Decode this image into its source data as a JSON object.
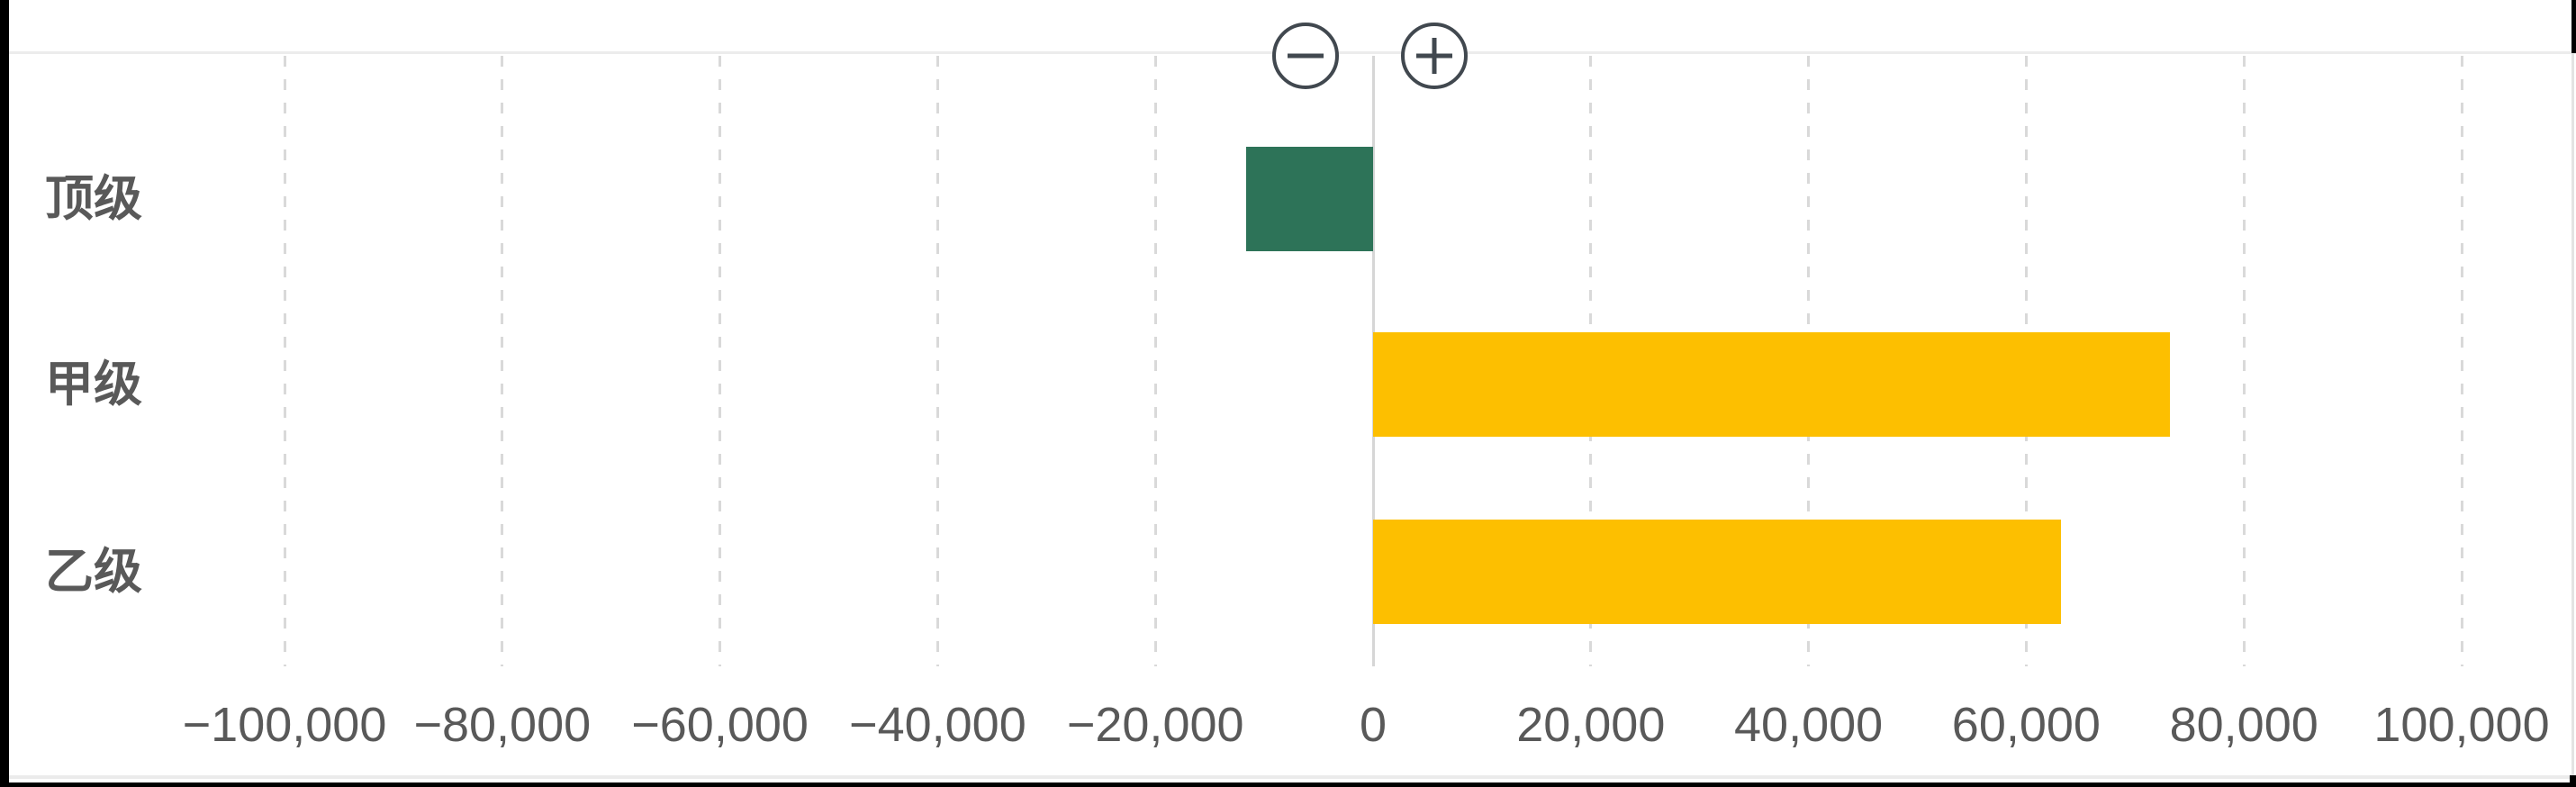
{
  "controls": {
    "zoom_out": {
      "icon": "minus-circle-icon"
    },
    "zoom_in": {
      "icon": "plus-circle-icon"
    }
  },
  "chart_data": {
    "type": "bar",
    "orientation": "horizontal",
    "title": "",
    "xlabel": "",
    "ylabel": "",
    "categories": [
      "顶级",
      "甲级",
      "乙级"
    ],
    "values": [
      -11700,
      73200,
      63200
    ],
    "bar_colors": [
      "#2d7358",
      "#fdbf00",
      "#fdbf00"
    ],
    "x_ticks": [
      {
        "value": -100000,
        "label": "−100,000"
      },
      {
        "value": -80000,
        "label": "−80,000"
      },
      {
        "value": -60000,
        "label": "−60,000"
      },
      {
        "value": -40000,
        "label": "−40,000"
      },
      {
        "value": -20000,
        "label": "−20,000"
      },
      {
        "value": 0,
        "label": "0"
      },
      {
        "value": 20000,
        "label": "20,000"
      },
      {
        "value": 40000,
        "label": "40,000"
      },
      {
        "value": 60000,
        "label": "60,000"
      },
      {
        "value": 80000,
        "label": "80,000"
      },
      {
        "value": 100000,
        "label": "100,000"
      }
    ],
    "xlim": [
      -125000,
      110000
    ],
    "grid": "vertical-dashed",
    "zero_line": true,
    "legend": null,
    "colors": {
      "text": "#595959",
      "grid": "#d9d9d9",
      "zero_line": "#d6d6d6",
      "button_stroke": "#41484f",
      "negative_bar": "#2d7358",
      "positive_bar": "#fdbf00"
    }
  }
}
